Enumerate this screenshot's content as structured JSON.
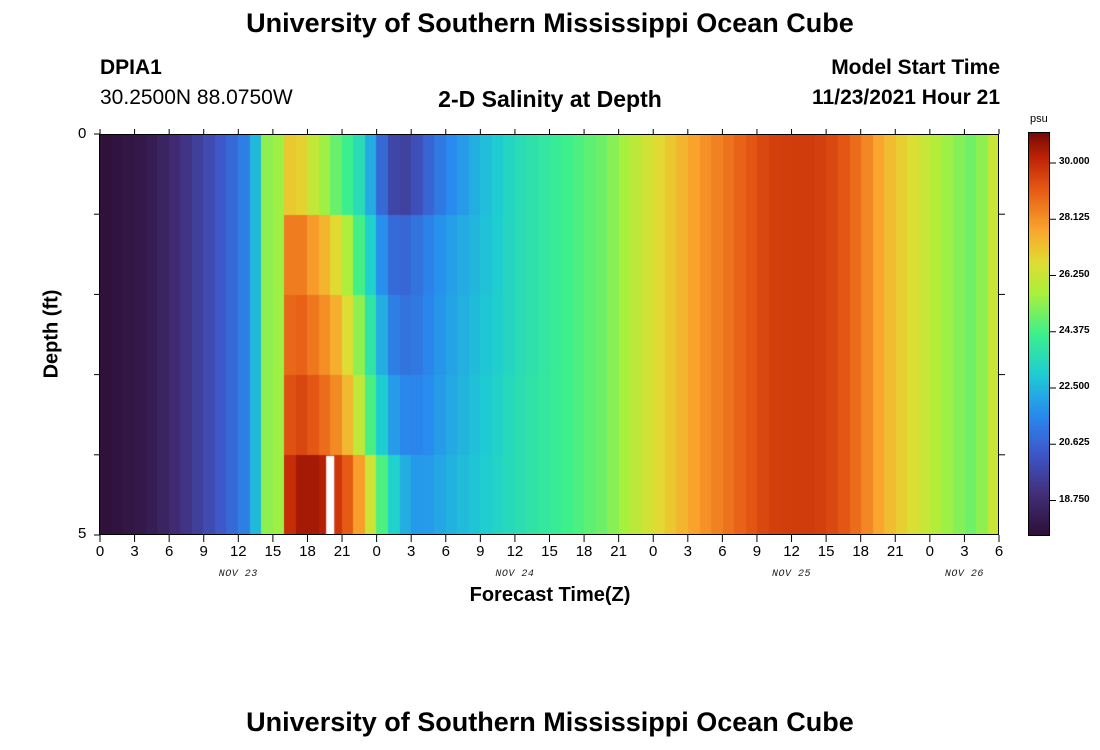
{
  "page": {
    "title": "University of Southern Mississippi Ocean Cube",
    "footer_title": "University of Southern Mississippi Ocean Cube",
    "station": {
      "id": "DPIA1",
      "coords": "30.2500N  88.0750W"
    },
    "plot_title": "2-D Salinity at Depth",
    "model_start": {
      "label": "Model Start Time",
      "value": "11/23/2021 Hour 21"
    }
  },
  "chart_data": {
    "type": "heatmap",
    "title": "2-D Salinity at Depth",
    "xlabel": "Forecast Time(Z)",
    "ylabel": "Depth (ft)",
    "x_ticks": [
      "0",
      "3",
      "6",
      "9",
      "12",
      "15",
      "18",
      "21",
      "0",
      "3",
      "6",
      "9",
      "12",
      "15",
      "18",
      "21",
      "0",
      "3",
      "6",
      "9",
      "12",
      "15",
      "18",
      "21",
      "0",
      "3",
      "6"
    ],
    "day_labels": [
      {
        "label": "NOV 23",
        "at_hour": 12
      },
      {
        "label": "NOV 24",
        "at_hour": 36
      },
      {
        "label": "NOV 25",
        "at_hour": 60
      },
      {
        "label": "NOV 26",
        "at_hour": 75
      }
    ],
    "x_range_hours": [
      0,
      78
    ],
    "y_range_ft": [
      0,
      5
    ],
    "y_tick_labels": [
      "0",
      "5"
    ],
    "depth_layers": 5,
    "colorbar": {
      "unit": "psu",
      "range": [
        17.6,
        31.0
      ],
      "tick_values": [
        "30.000",
        "28.125",
        "26.250",
        "24.375",
        "22.500",
        "20.625",
        "18.750"
      ]
    },
    "salinity_profile_hours": [
      0,
      4,
      8,
      11,
      12,
      13,
      14,
      14.5,
      15,
      15.5,
      16,
      17,
      18,
      19.5,
      21,
      22,
      23,
      24,
      25,
      26,
      27,
      28,
      30,
      33,
      36,
      40,
      44,
      48,
      52,
      56,
      58,
      60,
      62,
      64,
      66,
      68,
      70,
      72,
      74,
      76,
      77,
      78
    ],
    "salinity_layers": [
      [
        17.6,
        18.0,
        19.3,
        20.5,
        21.0,
        21.6,
        23.5,
        25.3,
        26.6,
        25.5,
        26.8,
        27.4,
        26.4,
        25.5,
        24.5,
        24.0,
        23.0,
        21.5,
        20.0,
        19.5,
        19.7,
        20.4,
        21.4,
        22.5,
        23.4,
        24.2,
        25.0,
        26.6,
        28.0,
        29.1,
        29.6,
        29.7,
        29.7,
        29.4,
        28.6,
        27.5,
        26.8,
        26.0,
        25.3,
        24.8,
        25.8,
        26.6
      ],
      [
        17.6,
        18.0,
        19.3,
        20.5,
        21.0,
        21.6,
        23.5,
        25.3,
        26.6,
        25.5,
        28.2,
        28.8,
        28.2,
        27.5,
        26.4,
        25.0,
        23.8,
        22.4,
        21.0,
        20.6,
        20.8,
        21.2,
        21.9,
        22.6,
        23.4,
        24.2,
        25.0,
        26.6,
        28.0,
        29.1,
        29.6,
        29.7,
        29.7,
        29.4,
        28.6,
        27.5,
        26.8,
        26.0,
        25.3,
        24.8,
        25.8,
        26.6
      ],
      [
        17.6,
        18.0,
        19.3,
        20.5,
        21.0,
        21.6,
        23.5,
        25.3,
        26.6,
        25.5,
        28.6,
        29.2,
        28.8,
        28.2,
        27.3,
        26.0,
        24.6,
        23.0,
        21.6,
        21.0,
        21.0,
        21.3,
        22.0,
        22.7,
        23.4,
        24.2,
        25.0,
        26.6,
        28.0,
        29.1,
        29.6,
        29.7,
        29.7,
        29.4,
        28.6,
        27.5,
        26.8,
        26.0,
        25.3,
        24.8,
        25.8,
        26.6
      ],
      [
        17.6,
        18.0,
        19.3,
        20.5,
        21.0,
        21.6,
        23.5,
        25.3,
        26.6,
        25.5,
        29.0,
        29.6,
        29.4,
        28.8,
        28.0,
        26.8,
        25.3,
        23.6,
        22.3,
        21.6,
        21.4,
        21.5,
        22.1,
        22.8,
        23.5,
        24.2,
        25.0,
        26.6,
        28.0,
        29.1,
        29.6,
        29.7,
        29.7,
        29.4,
        28.6,
        27.5,
        26.8,
        26.0,
        25.3,
        24.8,
        25.8,
        26.6
      ],
      [
        17.6,
        18.0,
        19.3,
        20.5,
        21.0,
        21.6,
        23.5,
        25.3,
        26.6,
        25.5,
        29.6,
        30.4,
        30.6,
        30.3,
        29.6,
        28.6,
        27.2,
        25.4,
        23.6,
        22.6,
        22.0,
        21.8,
        22.3,
        22.9,
        23.5,
        24.2,
        25.0,
        26.6,
        28.0,
        29.1,
        29.6,
        29.7,
        29.7,
        29.4,
        28.6,
        27.5,
        26.8,
        26.0,
        25.3,
        24.8,
        25.8,
        26.6
      ]
    ],
    "gap_hours": [
      19.6,
      20.3
    ],
    "gap_layer": 5
  }
}
